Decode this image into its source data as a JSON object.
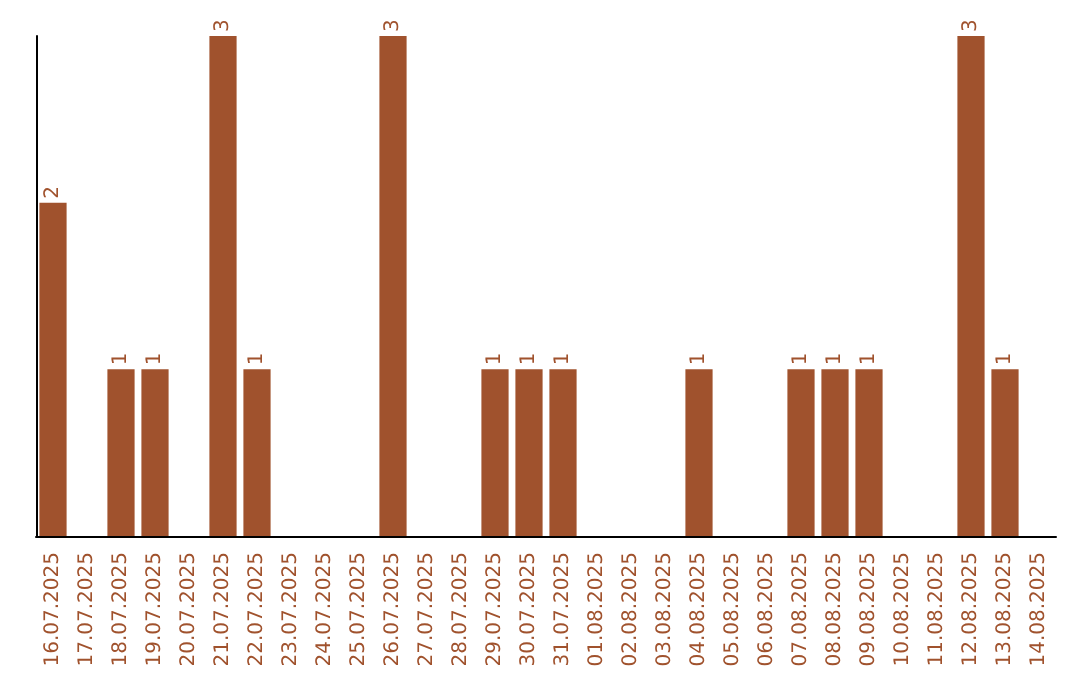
{
  "chart_data": {
    "type": "bar",
    "categories": [
      "16.07.2025",
      "17.07.2025",
      "18.07.2025",
      "19.07.2025",
      "20.07.2025",
      "21.07.2025",
      "22.07.2025",
      "23.07.2025",
      "24.07.2025",
      "25.07.2025",
      "26.07.2025",
      "27.07.2025",
      "28.07.2025",
      "29.07.2025",
      "30.07.2025",
      "31.07.2025",
      "01.08.2025",
      "02.08.2025",
      "03.08.2025",
      "04.08.2025",
      "05.08.2025",
      "06.08.2025",
      "07.08.2025",
      "08.08.2025",
      "09.08.2025",
      "10.08.2025",
      "11.08.2025",
      "12.08.2025",
      "13.08.2025",
      "14.08.2025"
    ],
    "values": [
      2,
      0,
      1,
      1,
      0,
      3,
      1,
      0,
      0,
      0,
      3,
      0,
      0,
      1,
      1,
      1,
      0,
      0,
      0,
      1,
      0,
      0,
      1,
      1,
      1,
      0,
      0,
      3,
      1,
      0
    ],
    "value_labels": [
      "2",
      null,
      "1",
      "1",
      null,
      "3",
      "1",
      null,
      null,
      null,
      "3",
      null,
      null,
      "1",
      "1",
      "1",
      null,
      null,
      null,
      "1",
      null,
      null,
      "1",
      "1",
      "1",
      null,
      null,
      "3",
      "1",
      null
    ],
    "color": "#a0522d",
    "grid": false
  }
}
